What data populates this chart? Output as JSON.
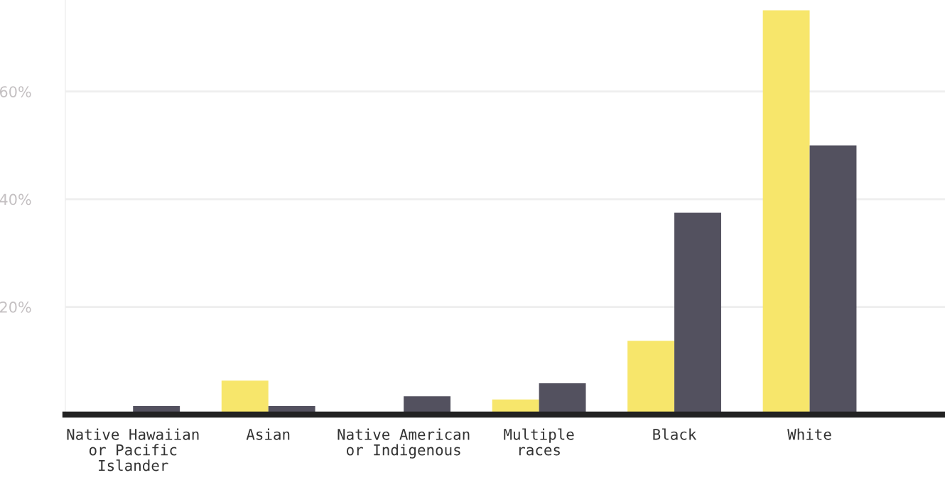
{
  "chart_data": {
    "type": "bar",
    "categories": [
      "Native Hawaiian\nor Pacific\nIslander",
      "Asian",
      "Native American\nor Indigenous",
      "Multiple\nraces",
      "Black",
      "White"
    ],
    "series": [
      {
        "color": "#f7e66b",
        "values": [
          0,
          6.3,
          0,
          2.8,
          13.7,
          75.1
        ]
      },
      {
        "color": "#53515f",
        "values": [
          1.6,
          1.6,
          3.4,
          5.8,
          37.5,
          50.0
        ]
      }
    ],
    "yticks": [
      {
        "value": 20,
        "label": "20%"
      },
      {
        "value": 40,
        "label": "40%"
      },
      {
        "value": 60,
        "label": "60%"
      }
    ],
    "ylim": [
      0,
      77
    ],
    "grid": "y"
  }
}
